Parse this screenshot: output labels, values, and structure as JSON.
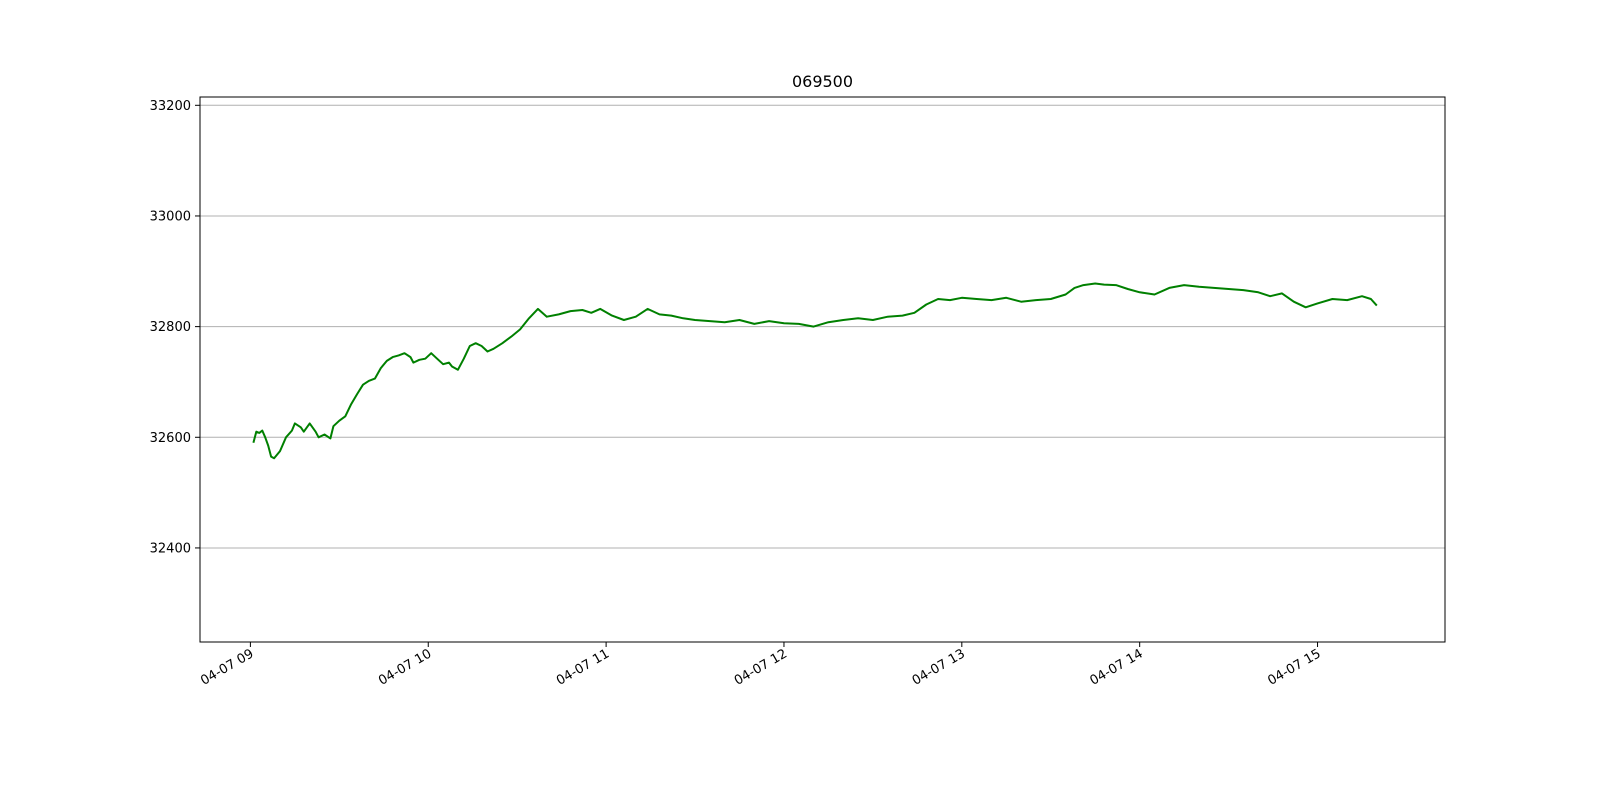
{
  "chart_data": {
    "type": "line",
    "title": "069500",
    "xlabel": "",
    "ylabel": "",
    "xlim": [
      "04-07 08:43",
      "04-07 15:43"
    ],
    "ylim": [
      32230,
      33215
    ],
    "x_ticks": [
      "04-07 09",
      "04-07 10",
      "04-07 11",
      "04-07 12",
      "04-07 13",
      "04-07 14",
      "04-07 15"
    ],
    "y_ticks": [
      32400,
      32600,
      32800,
      33000,
      33200
    ],
    "grid": "horizontal",
    "series": [
      {
        "color": "#008000",
        "x": [
          "04-07 09:01",
          "04-07 09:02",
          "04-07 09:03",
          "04-07 09:04",
          "04-07 09:05",
          "04-07 09:06",
          "04-07 09:07",
          "04-07 09:08",
          "04-07 09:10",
          "04-07 09:12",
          "04-07 09:14",
          "04-07 09:15",
          "04-07 09:17",
          "04-07 09:18",
          "04-07 09:20",
          "04-07 09:22",
          "04-07 09:23",
          "04-07 09:25",
          "04-07 09:27",
          "04-07 09:28",
          "04-07 09:30",
          "04-07 09:32",
          "04-07 09:34",
          "04-07 09:36",
          "04-07 09:38",
          "04-07 09:40",
          "04-07 09:42",
          "04-07 09:44",
          "04-07 09:46",
          "04-07 09:48",
          "04-07 09:50",
          "04-07 09:52",
          "04-07 09:54",
          "04-07 09:55",
          "04-07 09:57",
          "04-07 09:59",
          "04-07 10:01",
          "04-07 10:03",
          "04-07 10:05",
          "04-07 10:07",
          "04-07 10:08",
          "04-07 10:10",
          "04-07 10:12",
          "04-07 10:14",
          "04-07 10:16",
          "04-07 10:18",
          "04-07 10:20",
          "04-07 10:22",
          "04-07 10:25",
          "04-07 10:28",
          "04-07 10:31",
          "04-07 10:34",
          "04-07 10:37",
          "04-07 10:40",
          "04-07 10:44",
          "04-07 10:48",
          "04-07 10:52",
          "04-07 10:55",
          "04-07 10:58",
          "04-07 11:02",
          "04-07 11:06",
          "04-07 11:10",
          "04-07 11:14",
          "04-07 11:18",
          "04-07 11:22",
          "04-07 11:26",
          "04-07 11:30",
          "04-07 11:35",
          "04-07 11:40",
          "04-07 11:45",
          "04-07 11:50",
          "04-07 11:55",
          "04-07 12:00",
          "04-07 12:05",
          "04-07 12:10",
          "04-07 12:15",
          "04-07 12:20",
          "04-07 12:25",
          "04-07 12:30",
          "04-07 12:35",
          "04-07 12:40",
          "04-07 12:44",
          "04-07 12:48",
          "04-07 12:52",
          "04-07 12:56",
          "04-07 13:00",
          "04-07 13:05",
          "04-07 13:10",
          "04-07 13:15",
          "04-07 13:20",
          "04-07 13:25",
          "04-07 13:30",
          "04-07 13:35",
          "04-07 13:38",
          "04-07 13:41",
          "04-07 13:45",
          "04-07 13:48",
          "04-07 13:52",
          "04-07 13:56",
          "04-07 14:00",
          "04-07 14:05",
          "04-07 14:10",
          "04-07 14:15",
          "04-07 14:20",
          "04-07 14:25",
          "04-07 14:30",
          "04-07 14:35",
          "04-07 14:40",
          "04-07 14:44",
          "04-07 14:48",
          "04-07 14:52",
          "04-07 14:56",
          "04-07 15:00",
          "04-07 15:05",
          "04-07 15:10",
          "04-07 15:15",
          "04-07 15:18",
          "04-07 15:20"
        ],
        "y": [
          32590,
          32610,
          32608,
          32612,
          32600,
          32585,
          32565,
          32562,
          32575,
          32600,
          32612,
          32625,
          32618,
          32610,
          32625,
          32610,
          32600,
          32605,
          32598,
          32620,
          32630,
          32638,
          32660,
          32678,
          32695,
          32702,
          32706,
          32725,
          32738,
          32745,
          32748,
          32752,
          32745,
          32735,
          32740,
          32742,
          32752,
          32742,
          32732,
          32735,
          32728,
          32722,
          32742,
          32765,
          32770,
          32765,
          32755,
          32760,
          32770,
          32782,
          32795,
          32815,
          32832,
          32818,
          32822,
          32828,
          32830,
          32825,
          32832,
          32820,
          32812,
          32818,
          32832,
          32822,
          32820,
          32815,
          32812,
          32810,
          32808,
          32812,
          32805,
          32810,
          32806,
          32805,
          32800,
          32808,
          32812,
          32815,
          32812,
          32818,
          32820,
          32825,
          32840,
          32850,
          32848,
          32852,
          32850,
          32848,
          32852,
          32845,
          32848,
          32850,
          32858,
          32870,
          32875,
          32878,
          32876,
          32875,
          32868,
          32862,
          32858,
          32870,
          32875,
          32872,
          32870,
          32868,
          32866,
          32862,
          32855,
          32860,
          32845,
          32835,
          32842,
          32850,
          32848,
          32855,
          32850,
          32838
        ]
      }
    ]
  }
}
